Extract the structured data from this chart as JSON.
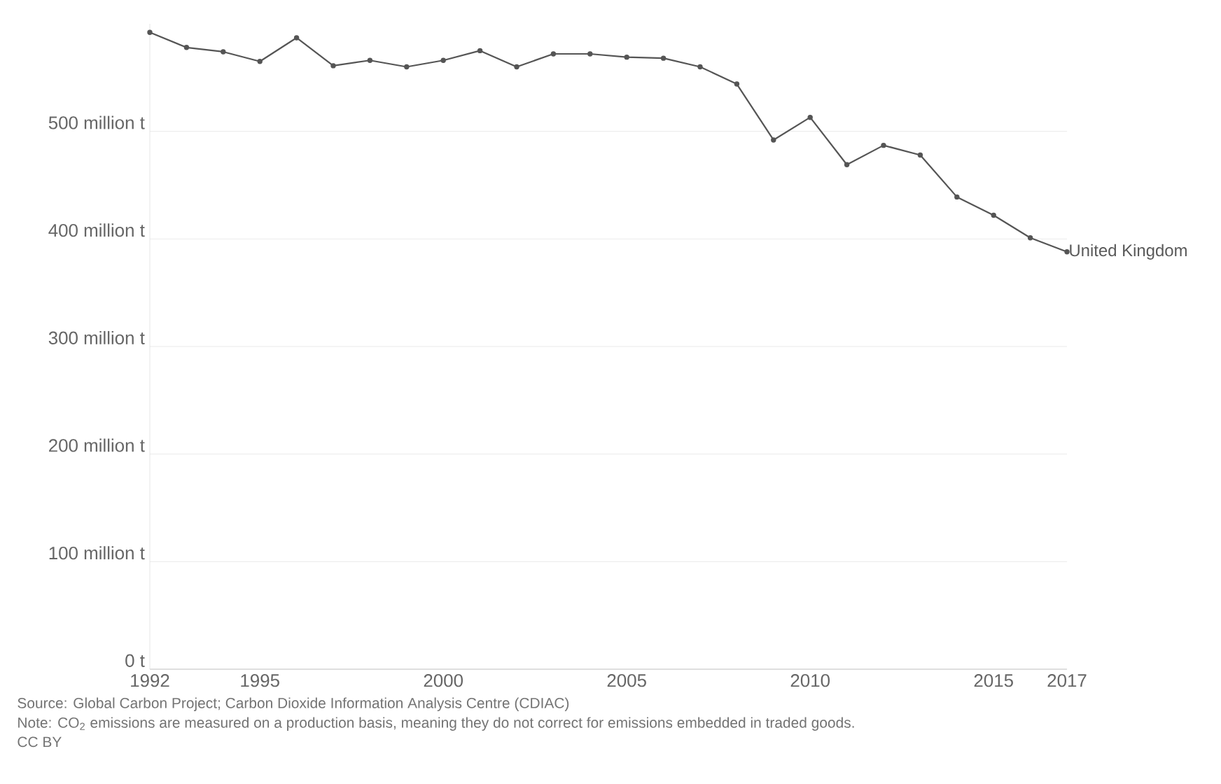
{
  "chart_data": {
    "type": "line",
    "x": [
      1992,
      1993,
      1994,
      1995,
      1996,
      1997,
      1998,
      1999,
      2000,
      2001,
      2002,
      2003,
      2004,
      2005,
      2006,
      2007,
      2008,
      2009,
      2010,
      2011,
      2012,
      2013,
      2014,
      2015,
      2016,
      2017
    ],
    "series": [
      {
        "name": "United Kingdom",
        "color": "#555555",
        "values": [
          592,
          578,
          574,
          565,
          587,
          561,
          566,
          560,
          566,
          575,
          560,
          572,
          572,
          569,
          568,
          560,
          544,
          492,
          513,
          469,
          487,
          478,
          439,
          422,
          401,
          388
        ]
      }
    ],
    "xlim": [
      1992,
      2017
    ],
    "xticks": [
      1992,
      1995,
      2000,
      2005,
      2010,
      2015,
      2017
    ],
    "ylim": [
      0,
      600
    ],
    "yticks": [
      {
        "value": 0,
        "label": "0 t"
      },
      {
        "value": 100,
        "label": "100 million t"
      },
      {
        "value": 200,
        "label": "200 million t"
      },
      {
        "value": 300,
        "label": "300 million t"
      },
      {
        "value": 400,
        "label": "400 million t"
      },
      {
        "value": 500,
        "label": "500 million t"
      }
    ],
    "grid": "y",
    "marker": "circle",
    "line_style": "solid",
    "legend": false,
    "annotations": [
      "Source: Global Carbon Project; Carbon Dioxide Information Analysis Centre (CDIAC)",
      "Note: CO$_{2}$ emissions are measured on a production basis, meaning they do not correct for emissions embedded in traded goods.",
      "CC BY"
    ]
  }
}
